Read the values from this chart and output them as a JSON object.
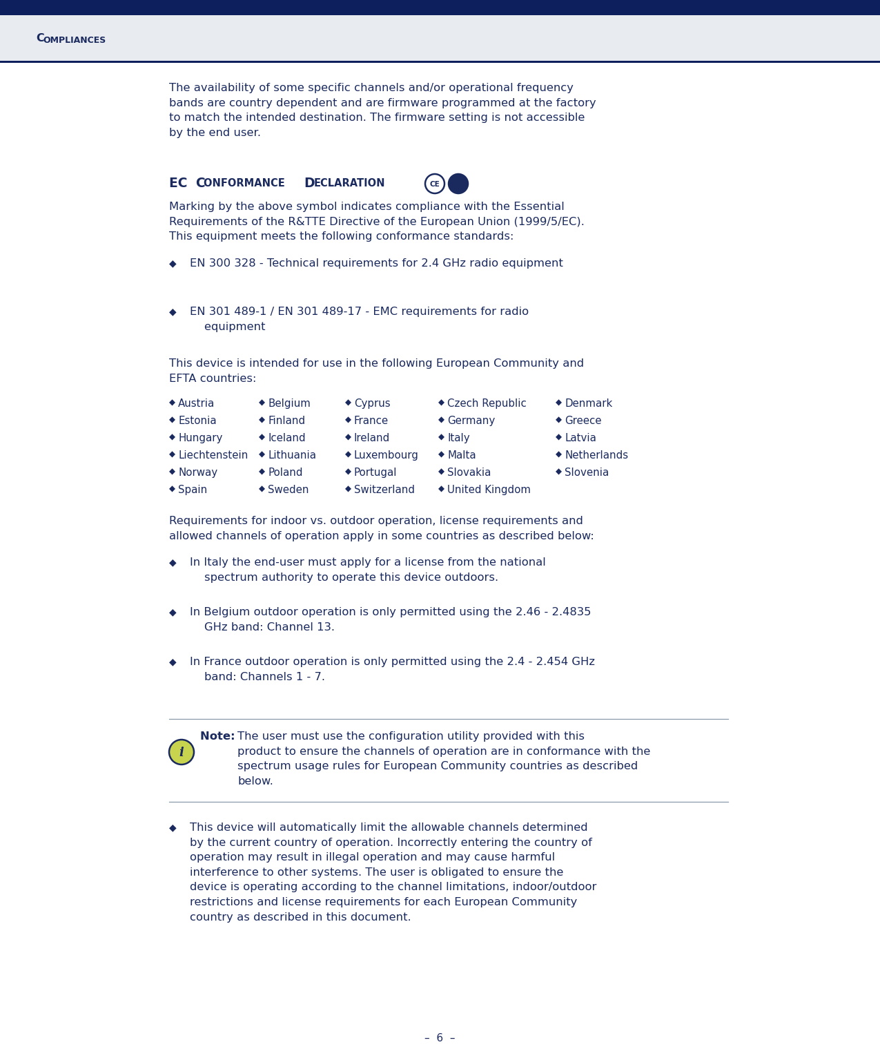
{
  "bg_color": "#e8ecf0",
  "header_bg": "#0d1f5c",
  "header_text_color": "#e8ecf0",
  "text_color": "#1a2a5e",
  "body_bg": "#ffffff",
  "page_number": "–  6  –",
  "intro_text": "The availability of some specific channels and/or operational frequency\nbands are country dependent and are firmware programmed at the factory\nto match the intended destination. The firmware setting is not accessible\nby the end user.",
  "ec_title": "EC Conformance Declaration",
  "ec_body": "Marking by the above symbol indicates compliance with the Essential\nRequirements of the R&TTE Directive of the European Union (1999/5/EC).\nThis equipment meets the following conformance standards:",
  "bullets1": [
    "EN 300 328 - Technical requirements for 2.4 GHz radio equipment",
    "EN 301 489-1 / EN 301 489-17 - EMC requirements for radio\n    equipment"
  ],
  "efta_intro": "This device is intended for use in the following European Community and\nEFTA countries:",
  "countries": [
    [
      "Austria",
      "Belgium",
      "Cyprus",
      "Czech Republic",
      "Denmark"
    ],
    [
      "Estonia",
      "Finland",
      "France",
      "Germany",
      "Greece"
    ],
    [
      "Hungary",
      "Iceland",
      "Ireland",
      "Italy",
      "Latvia"
    ],
    [
      "Liechtenstein",
      "Lithuania",
      "Luxembourg",
      "Malta",
      "Netherlands"
    ],
    [
      "Norway",
      "Poland",
      "Portugal",
      "Slovakia",
      "Slovenia"
    ],
    [
      "Spain",
      "Sweden",
      "Switzerland",
      "United Kingdom",
      ""
    ]
  ],
  "req_text": "Requirements for indoor vs. outdoor operation, license requirements and\nallowed channels of operation apply in some countries as described below:",
  "bullets2_items": [
    [
      "In Italy the end-user must apply for a license from the national",
      "spectrum authority to operate this device outdoors."
    ],
    [
      "In Belgium outdoor operation is only permitted using the 2.46 - 2.4835",
      "GHz band: Channel 13."
    ],
    [
      "In France outdoor operation is only permitted using the 2.4 - 2.454 GHz",
      "band: Channels 1 - 7."
    ]
  ],
  "note_body": "The user must use the configuration utility provided with this\nproduct to ensure the channels of operation are in conformance with the\nspectrum usage rules for European Community countries as described\nbelow.",
  "bullet3_lines": [
    "This device will automatically limit the allowable channels determined",
    "by the current country of operation. Incorrectly entering the country of",
    "operation may result in illegal operation and may cause harmful",
    "interference to other systems. The user is obligated to ensure the",
    "device is operating according to the channel limitations, indoor/outdoor",
    "restrictions and license requirements for each European Community",
    "country as described in this document."
  ]
}
